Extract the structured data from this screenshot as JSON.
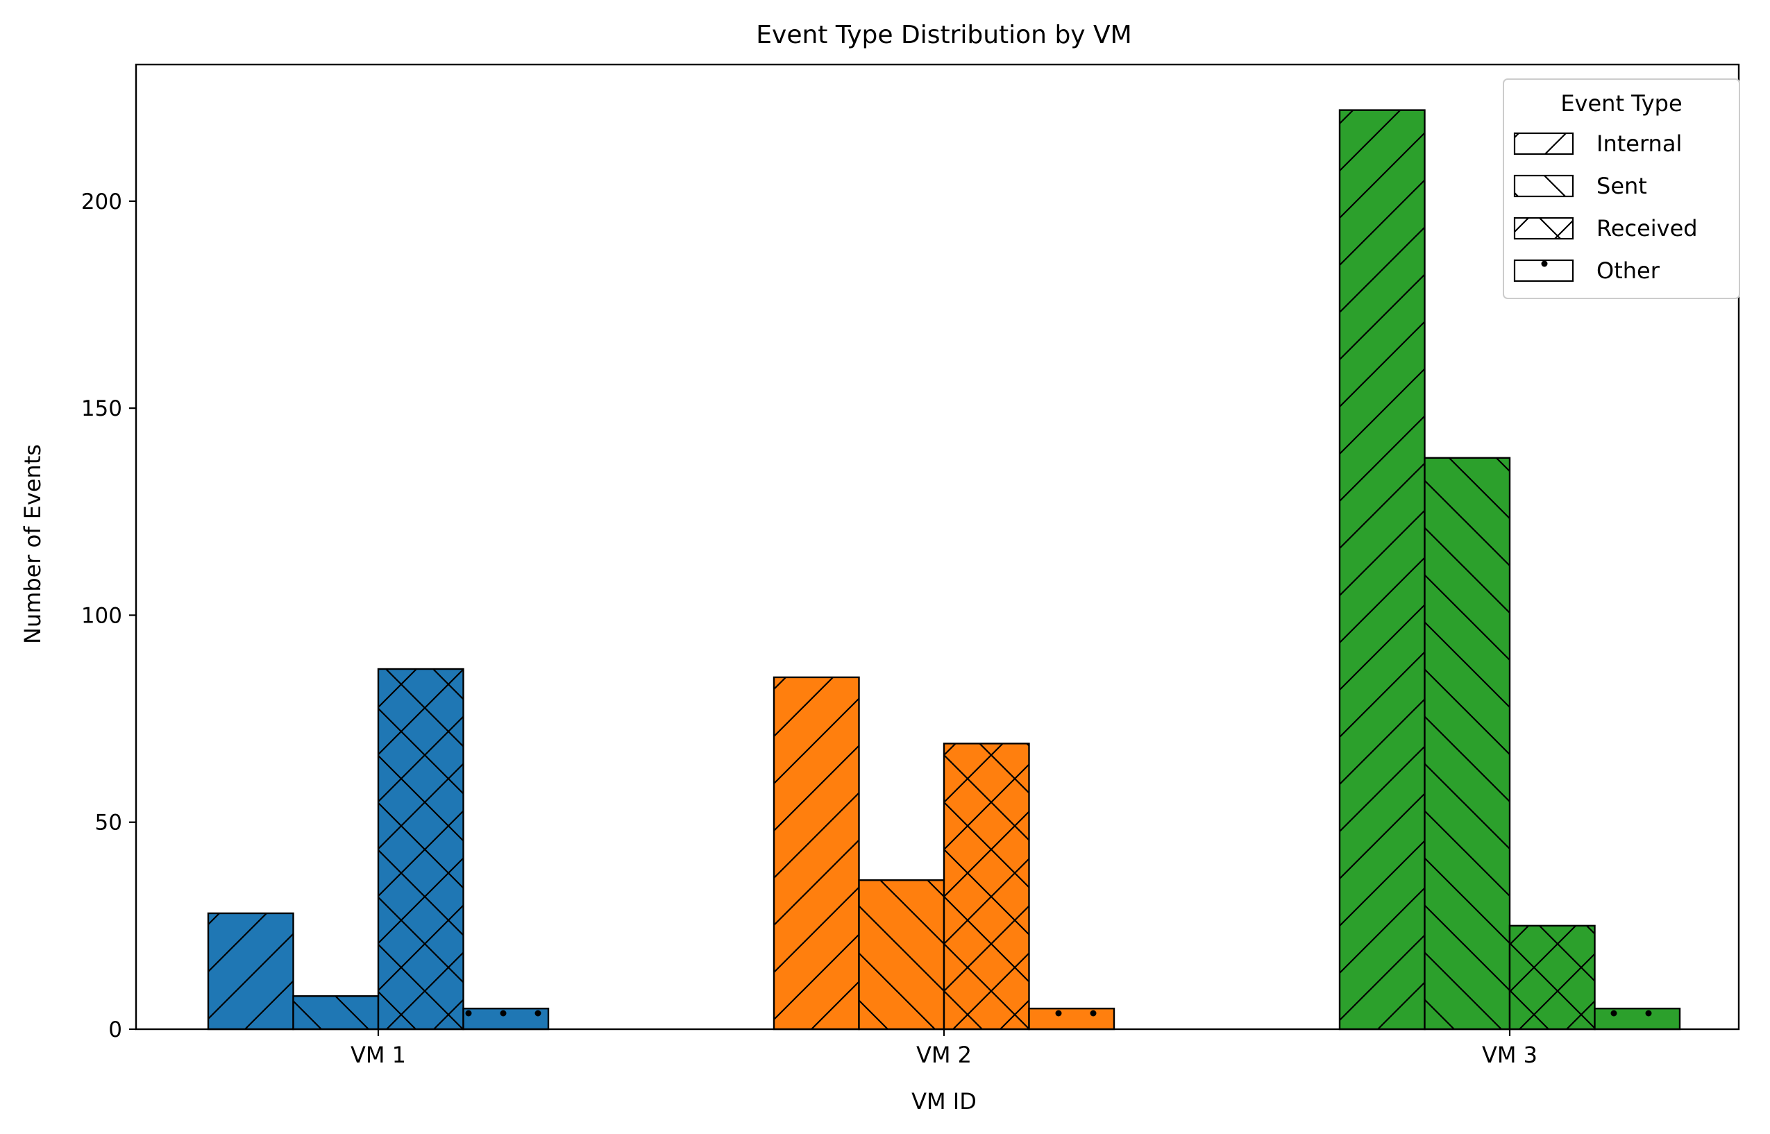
{
  "chart_data": {
    "type": "bar",
    "title": "Event Type Distribution by VM",
    "xlabel": "VM ID",
    "ylabel": "Number of Events",
    "categories": [
      "VM 1",
      "VM 2",
      "VM 3"
    ],
    "category_colors": [
      "#1f77b4",
      "#ff7f0e",
      "#2ca02c"
    ],
    "ylim": [
      0,
      233
    ],
    "yticks": [
      0,
      50,
      100,
      150,
      200
    ],
    "grid": false,
    "legend": {
      "title": "Event Type",
      "placement": "top-right"
    },
    "series": [
      {
        "name": "Internal",
        "hatch": "/",
        "values": [
          28,
          85,
          222
        ]
      },
      {
        "name": "Sent",
        "hatch": "\\",
        "values": [
          8,
          36,
          138
        ]
      },
      {
        "name": "Received",
        "hatch": "x",
        "values": [
          87,
          69,
          25
        ]
      },
      {
        "name": "Other",
        "hatch": ".",
        "values": [
          5,
          5,
          5
        ]
      }
    ]
  }
}
